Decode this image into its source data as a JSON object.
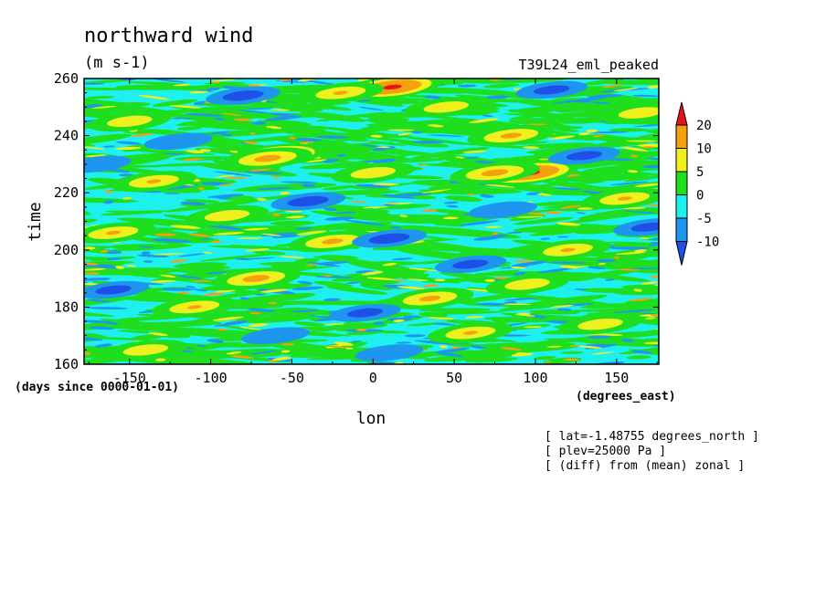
{
  "chart_data": {
    "type": "heatmap",
    "title": "northward wind",
    "units": "(m s-1)",
    "model": "T39L24_eml_peaked",
    "xlabel": "lon",
    "ylabel": "time",
    "x_units": "(degrees_east)",
    "y_units": "(days since 0000-01-01)",
    "xlim": [
      -178,
      176
    ],
    "ylim": [
      160,
      260
    ],
    "x_ticks": [
      "-150",
      "-100",
      "-50",
      "0",
      "50",
      "100",
      "150"
    ],
    "x_tick_values": [
      -150,
      -100,
      -50,
      0,
      50,
      100,
      150
    ],
    "y_ticks": [
      "160",
      "180",
      "200",
      "220",
      "240",
      "260"
    ],
    "y_tick_values": [
      160,
      180,
      200,
      220,
      240,
      260
    ],
    "colorbar": {
      "labels": [
        "20",
        "10",
        "5",
        "0",
        "-5",
        "-10"
      ],
      "levels": [
        20,
        10,
        5,
        0,
        -5,
        -10
      ],
      "colors": [
        "#e8141c",
        "#f5a00f",
        "#f0f01e",
        "#1ede1e",
        "#1ef0f0",
        "#1e96f0",
        "#1e50e8"
      ],
      "extend": "both"
    },
    "annotations": [
      "[ lat=-1.48755 degrees_north ]",
      "[ plev=25000 Pa ]",
      "[ (diff) from (mean) zonal ]"
    ],
    "hotspots": [
      {
        "lon": 96,
        "time": 227,
        "value": 22
      },
      {
        "lon": -60,
        "time": 233,
        "value": 21
      },
      {
        "lon": 12,
        "time": 257,
        "value": 21
      },
      {
        "lon": -65,
        "time": 232,
        "value": 12
      },
      {
        "lon": 75,
        "time": 227,
        "value": 12
      },
      {
        "lon": -72,
        "time": 190,
        "value": 12
      },
      {
        "lon": -25,
        "time": 203,
        "value": 11
      },
      {
        "lon": 85,
        "time": 240,
        "value": 11
      },
      {
        "lon": 35,
        "time": 183,
        "value": 11
      },
      {
        "lon": -135,
        "time": 224,
        "value": 10
      },
      {
        "lon": -160,
        "time": 206,
        "value": 10
      },
      {
        "lon": 155,
        "time": 218,
        "value": 10
      },
      {
        "lon": -110,
        "time": 180,
        "value": 10
      },
      {
        "lon": 120,
        "time": 200,
        "value": 10
      },
      {
        "lon": 60,
        "time": 171,
        "value": 10
      },
      {
        "lon": -20,
        "time": 255,
        "value": 10
      },
      {
        "lon": 0,
        "time": 227,
        "value": 9
      },
      {
        "lon": -140,
        "time": 165,
        "value": 9
      },
      {
        "lon": 165,
        "time": 248,
        "value": 9
      },
      {
        "lon": -90,
        "time": 212,
        "value": 9
      },
      {
        "lon": 95,
        "time": 188,
        "value": 9
      },
      {
        "lon": 45,
        "time": 250,
        "value": 9
      },
      {
        "lon": -150,
        "time": 245,
        "value": 9
      },
      {
        "lon": 140,
        "time": 174,
        "value": 9
      },
      {
        "lon": 10,
        "time": 204,
        "value": -11
      },
      {
        "lon": -80,
        "time": 254,
        "value": -11
      },
      {
        "lon": -40,
        "time": 217,
        "value": -11
      },
      {
        "lon": 130,
        "time": 233,
        "value": -10
      },
      {
        "lon": -160,
        "time": 186,
        "value": -10
      },
      {
        "lon": 60,
        "time": 195,
        "value": -10
      },
      {
        "lon": 170,
        "time": 208,
        "value": -10
      },
      {
        "lon": -5,
        "time": 178,
        "value": -10
      },
      {
        "lon": 110,
        "time": 256,
        "value": -10
      },
      {
        "lon": -120,
        "time": 238,
        "value": -9
      },
      {
        "lon": 10,
        "time": 164,
        "value": -9
      },
      {
        "lon": -60,
        "time": 170,
        "value": -9
      },
      {
        "lon": 80,
        "time": 214,
        "value": -9
      },
      {
        "lon": -170,
        "time": 230,
        "value": -9
      }
    ]
  }
}
